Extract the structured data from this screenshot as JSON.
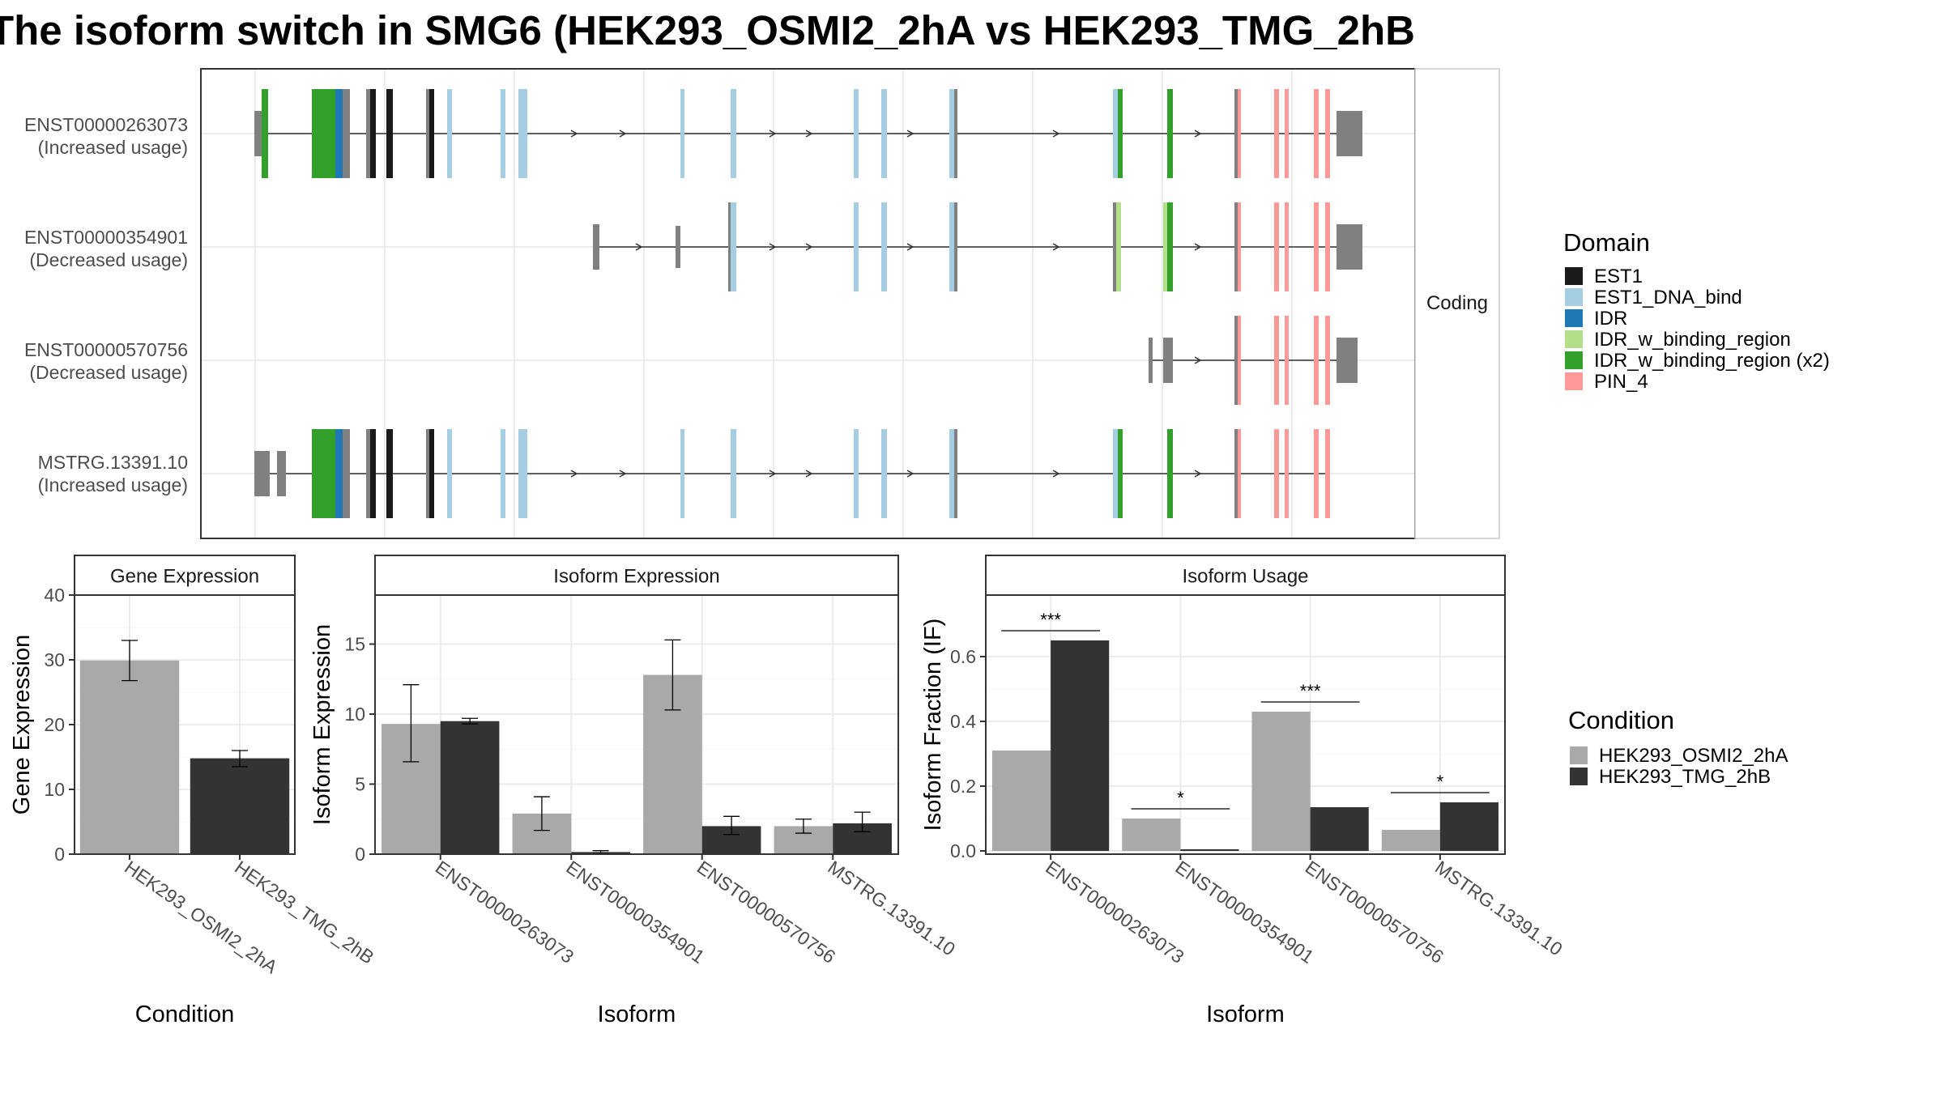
{
  "title": "The isoform switch in SMG6 (HEK293_OSMI2_2hA vs HEK293_TMG_2hB",
  "colors": {
    "EST1": "#1a1a1a",
    "EST1_DNA_bind": "#a6cee3",
    "IDR": "#1f78b4",
    "IDR_w_binding_region": "#b2df8a",
    "IDR_w_binding_region (x2)": "#33a02c",
    "PIN_4": "#fb9a99",
    "noncoding": "#808080",
    "osmi": "#a9a9a9",
    "tmg": "#333333"
  },
  "transcripts": {
    "strip_label": "Coding",
    "items": [
      {
        "id": "ENST00000263073",
        "usage": "(Increased usage)"
      },
      {
        "id": "ENST00000354901",
        "usage": "(Decreased usage)"
      },
      {
        "id": "ENST00000570756",
        "usage": "(Decreased usage)"
      },
      {
        "id": "MSTRG.13391.10",
        "usage": "(Increased usage)"
      }
    ],
    "legend_title": "Domain",
    "legend_items": [
      "EST1",
      "EST1_DNA_bind",
      "IDR",
      "IDR_w_binding_region",
      "IDR_w_binding_region (x2)",
      "PIN_4"
    ]
  },
  "condition_legend": {
    "title": "Condition",
    "items": [
      "HEK293_OSMI2_2hA",
      "HEK293_TMG_2hB"
    ]
  },
  "chart_data": [
    {
      "type": "bar",
      "title": "Gene Expression",
      "xlabel": "Condition",
      "ylabel": "Gene Expression",
      "categories": [
        "HEK293_OSMI2_2hA",
        "HEK293_TMG_2hB"
      ],
      "values": [
        29.9,
        14.8
      ],
      "error_low": [
        26.8,
        13.5
      ],
      "error_high": [
        33.0,
        16.0
      ],
      "ylim": [
        0,
        40
      ],
      "yticks": [
        0,
        10,
        20,
        30,
        40
      ]
    },
    {
      "type": "bar",
      "title": "Isoform Expression",
      "xlabel": "Isoform",
      "ylabel": "Isoform Expression",
      "categories": [
        "ENST00000263073",
        "ENST00000354901",
        "ENST00000570756",
        "MSTRG.13391.10"
      ],
      "series": [
        {
          "name": "HEK293_OSMI2_2hA",
          "values": [
            9.3,
            2.9,
            12.8,
            2.0
          ],
          "error_low": [
            6.6,
            1.7,
            10.3,
            1.5
          ],
          "error_high": [
            12.1,
            4.1,
            15.3,
            2.5
          ]
        },
        {
          "name": "HEK293_TMG_2hB",
          "values": [
            9.5,
            0.15,
            2.0,
            2.2
          ],
          "error_low": [
            9.3,
            0.05,
            1.4,
            1.6
          ],
          "error_high": [
            9.7,
            0.25,
            2.7,
            3.0
          ]
        }
      ],
      "ylim": [
        0,
        18.5
      ],
      "yticks": [
        0,
        5,
        10,
        15
      ]
    },
    {
      "type": "bar",
      "title": "Isoform Usage",
      "xlabel": "Isoform",
      "ylabel": "Isoform Fraction (IF)",
      "categories": [
        "ENST00000263073",
        "ENST00000354901",
        "ENST00000570756",
        "MSTRG.13391.10"
      ],
      "series": [
        {
          "name": "HEK293_OSMI2_2hA",
          "values": [
            0.31,
            0.1,
            0.43,
            0.065
          ]
        },
        {
          "name": "HEK293_TMG_2hB",
          "values": [
            0.65,
            0.005,
            0.135,
            0.15
          ]
        }
      ],
      "significance": [
        "***",
        "*",
        "***",
        "*"
      ],
      "ylim": [
        -0.01,
        0.79
      ],
      "yticks": [
        0.0,
        0.2,
        0.4,
        0.6
      ],
      "ytick_labels": [
        "0.0",
        "0.2",
        "0.4",
        "0.6"
      ]
    }
  ]
}
